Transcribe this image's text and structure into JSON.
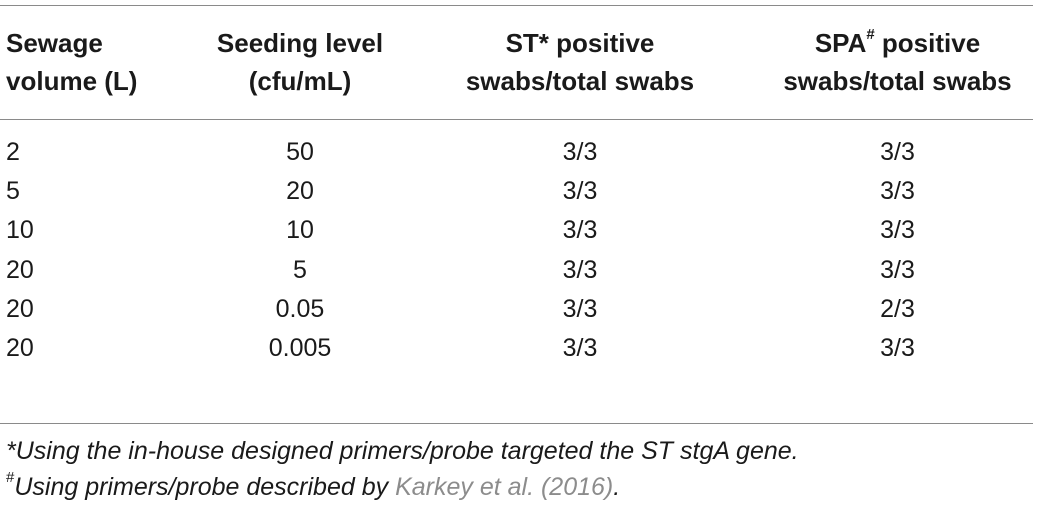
{
  "table": {
    "headers": {
      "col1_line1": "Sewage",
      "col1_line2": "volume (L)",
      "col2_line1": "Seeding level",
      "col2_line2": "(cfu/mL)",
      "col3_line1": "ST* positive",
      "col3_line2": "swabs/total swabs",
      "col4_line1_pre": "SPA",
      "col4_line1_sup": "#",
      "col4_line1_post": " positive",
      "col4_line2": "swabs/total swabs"
    },
    "rows": [
      {
        "volume": "2",
        "seeding": "50",
        "st": "3/3",
        "spa": "3/3"
      },
      {
        "volume": "5",
        "seeding": "20",
        "st": "3/3",
        "spa": "3/3"
      },
      {
        "volume": "10",
        "seeding": "10",
        "st": "3/3",
        "spa": "3/3"
      },
      {
        "volume": "20",
        "seeding": "5",
        "st": "3/3",
        "spa": "3/3"
      },
      {
        "volume": "20",
        "seeding": "0.05",
        "st": "3/3",
        "spa": "2/3"
      },
      {
        "volume": "20",
        "seeding": "0.005",
        "st": "3/3",
        "spa": "3/3"
      }
    ]
  },
  "footnotes": {
    "note1": "*Using the in-house designed primers/probe targeted the ST stgA gene.",
    "note2_mark": "#",
    "note2_pre": "Using primers/probe described by ",
    "note2_cite": "Karkey et al. (2016)",
    "note2_post": "."
  },
  "colors": {
    "text": "#1a1a1a",
    "rule": "#8a8a8a",
    "citation": "#8c8c8c"
  }
}
